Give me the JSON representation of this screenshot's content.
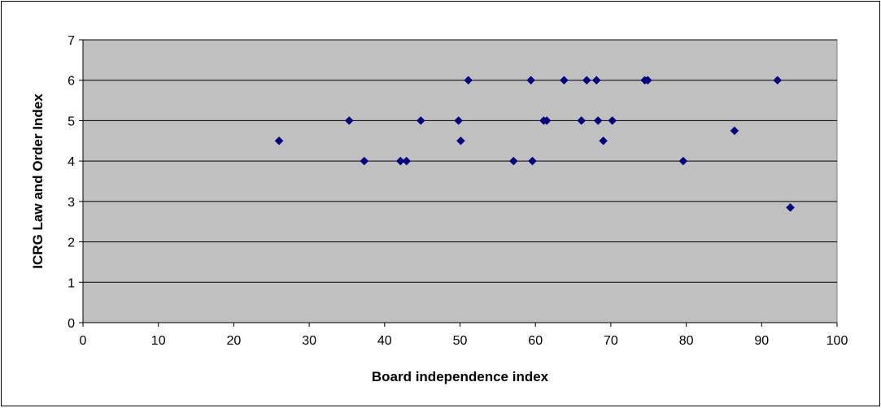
{
  "chart_data": {
    "type": "scatter",
    "title": "",
    "xlabel": "Board independence index",
    "ylabel": "ICRG Law and Order Index",
    "xlim": [
      0,
      100
    ],
    "ylim": [
      0,
      7
    ],
    "x_ticks": [
      "0",
      "10",
      "20",
      "30",
      "40",
      "50",
      "60",
      "70",
      "80",
      "90",
      "100"
    ],
    "y_ticks": [
      "0",
      "1",
      "2",
      "3",
      "4",
      "5",
      "6",
      "7"
    ],
    "grid": "horizontal",
    "legend": "none",
    "plot_background": "#c0c0c0",
    "marker_color": "#000080",
    "marker": "diamond",
    "series": [
      {
        "points": [
          {
            "x": 26,
            "y": 4.5
          },
          {
            "x": 35.3,
            "y": 5
          },
          {
            "x": 37.3,
            "y": 4
          },
          {
            "x": 42.1,
            "y": 4
          },
          {
            "x": 42.9,
            "y": 4
          },
          {
            "x": 44.8,
            "y": 5
          },
          {
            "x": 49.8,
            "y": 5
          },
          {
            "x": 50.1,
            "y": 4.5
          },
          {
            "x": 51.1,
            "y": 6
          },
          {
            "x": 57.1,
            "y": 4
          },
          {
            "x": 59.4,
            "y": 6
          },
          {
            "x": 59.6,
            "y": 4
          },
          {
            "x": 61.1,
            "y": 5
          },
          {
            "x": 61.5,
            "y": 5
          },
          {
            "x": 63.8,
            "y": 6
          },
          {
            "x": 66.1,
            "y": 5
          },
          {
            "x": 66.8,
            "y": 6
          },
          {
            "x": 68.1,
            "y": 6
          },
          {
            "x": 68.3,
            "y": 5
          },
          {
            "x": 69.0,
            "y": 4.5
          },
          {
            "x": 70.2,
            "y": 5
          },
          {
            "x": 74.5,
            "y": 6
          },
          {
            "x": 74.9,
            "y": 6
          },
          {
            "x": 79.6,
            "y": 4
          },
          {
            "x": 86.4,
            "y": 4.75
          },
          {
            "x": 92.1,
            "y": 6
          },
          {
            "x": 93.8,
            "y": 2.85
          }
        ]
      }
    ]
  }
}
